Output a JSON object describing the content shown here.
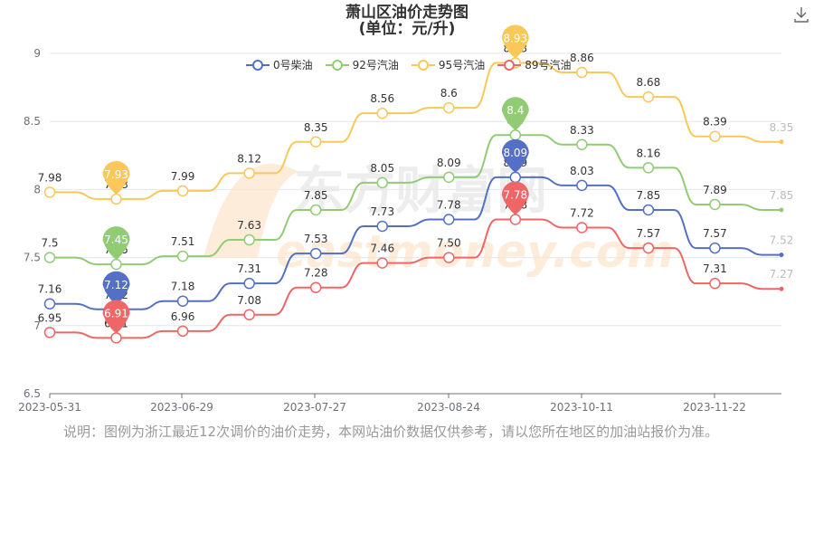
{
  "title": "萧山区油价走势图",
  "subtitle": "(单位：元/升)",
  "note": "说明：图例为浙江最近12次调价的油价走势，本网站油价数据仅供参考，请以您所在地区的加油站报价为准。",
  "watermark": "东方财富网 eastmoney.com",
  "chart_data": {
    "type": "line",
    "x_ticks": [
      "2023-05-31",
      "2023-06-29",
      "2023-07-27",
      "2023-08-24",
      "2023-10-11",
      "2023-11-22"
    ],
    "ylim": [
      6.5,
      9
    ],
    "y_ticks": [
      "6.5",
      "7",
      "7.5",
      "8",
      "8.5",
      "9"
    ],
    "grid": true,
    "legend_position": "top",
    "series": [
      {
        "name": "0号柴油",
        "color": "#5470c6",
        "values": [
          7.16,
          7.12,
          7.18,
          7.31,
          7.53,
          7.73,
          7.78,
          8.09,
          8.03,
          7.85,
          7.57,
          7.52
        ],
        "max_marker": "8.09",
        "min_marker": "7.12"
      },
      {
        "name": "92号汽油",
        "color": "#91cc75",
        "values": [
          7.5,
          7.45,
          7.51,
          7.63,
          7.85,
          8.05,
          8.09,
          8.4,
          8.33,
          8.16,
          7.89,
          7.85
        ],
        "max_marker": "8.4",
        "min_marker": "7.45"
      },
      {
        "name": "95号汽油",
        "color": "#fac858",
        "values": [
          7.98,
          7.93,
          7.99,
          8.12,
          8.35,
          8.56,
          8.6,
          8.93,
          8.86,
          8.68,
          8.39,
          8.35
        ],
        "max_marker": "8.93",
        "min_marker": "7.93"
      },
      {
        "name": "89号汽油",
        "color": "#ee6666",
        "values": [
          6.95,
          6.91,
          6.96,
          7.08,
          7.28,
          7.46,
          7.5,
          7.78,
          7.72,
          7.57,
          7.31,
          7.27
        ],
        "max_marker": "7.78",
        "min_marker": "6.91"
      }
    ],
    "point_labels": [
      [
        "7.16",
        "7.12",
        "7.18",
        "7.31",
        "7.53",
        "7.73",
        "7.78",
        "8.09",
        "8.03",
        "7.85",
        "7.57",
        "7.52"
      ],
      [
        "7.5",
        "7.45",
        "7.51",
        "7.63",
        "7.85",
        "8.05",
        "8.09",
        "8.4",
        "8.33",
        "8.16",
        "7.89",
        "7.85"
      ],
      [
        "7.98",
        "7.93",
        "7.99",
        "8.12",
        "8.35",
        "8.56",
        "8.6",
        "8.93",
        "8.86",
        "8.68",
        "8.39",
        "8.35"
      ],
      [
        "6.95",
        "6.91",
        "6.96",
        "7.08",
        "7.28",
        "7.46",
        "7.50",
        "7.78",
        "7.72",
        "7.57",
        "7.31",
        "7.27"
      ]
    ]
  }
}
